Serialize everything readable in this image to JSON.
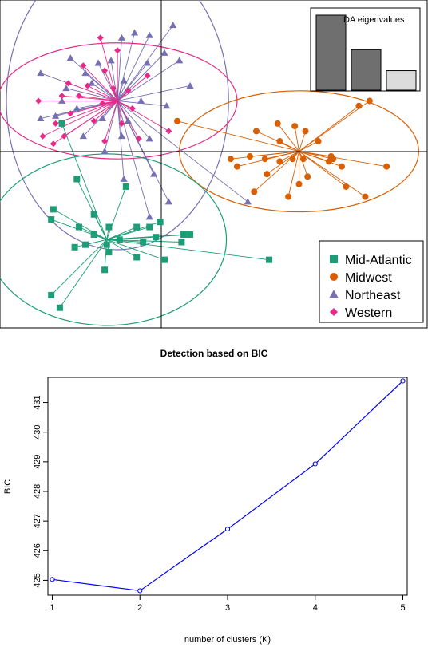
{
  "chart_data": [
    {
      "type": "scatter",
      "title": "",
      "xlabel": "",
      "ylabel": "",
      "xlim": [
        -10,
        10
      ],
      "ylim": [
        -7,
        6
      ],
      "axes_crosshair": true,
      "legend": {
        "placement": "bottom-right",
        "entries": [
          {
            "label": "Mid-Atlantic",
            "color": "#1b9e77",
            "marker": "square"
          },
          {
            "label": "Midwest",
            "color": "#d95f02",
            "marker": "circle"
          },
          {
            "label": "Northeast",
            "color": "#7570b3",
            "marker": "triangle"
          },
          {
            "label": "Western",
            "color": "#e7298a",
            "marker": "diamond"
          }
        ]
      },
      "inset": {
        "title": "DA eigenvalues",
        "values": [
          1.0,
          0.54,
          0.26
        ],
        "colors": [
          "#6f6f6f",
          "#6f6f6f",
          "#dcdcdc"
        ]
      },
      "series": [
        {
          "name": "Northeast",
          "color": "#7570b3",
          "marker": "triangle",
          "center": [
            -4.5,
            2.0
          ],
          "ellipse": {
            "rx": 5.2,
            "ry": 5.9
          },
          "points": [
            [
              -1.9,
              5.0
            ],
            [
              -3.7,
              4.7
            ],
            [
              -3.0,
              4.6
            ],
            [
              -4.3,
              4.5
            ],
            [
              -2.3,
              3.9
            ],
            [
              -6.7,
              3.7
            ],
            [
              -4.8,
              3.6
            ],
            [
              -5.4,
              3.5
            ],
            [
              -3.1,
              3.5
            ],
            [
              -1.6,
              3.6
            ],
            [
              -6.0,
              3.1
            ],
            [
              -8.1,
              3.1
            ],
            [
              -5.7,
              2.7
            ],
            [
              -4.2,
              2.8
            ],
            [
              -1.1,
              2.6
            ],
            [
              -6.9,
              2.5
            ],
            [
              -7.1,
              2.0
            ],
            [
              -6.4,
              1.7
            ],
            [
              -3.4,
              2.0
            ],
            [
              -2.2,
              1.8
            ],
            [
              -7.4,
              1.4
            ],
            [
              -5.2,
              1.3
            ],
            [
              -8.1,
              1.3
            ],
            [
              -4.0,
              1.2
            ],
            [
              -6.1,
              0.6
            ],
            [
              -3.0,
              0.5
            ],
            [
              -4.3,
              0.6
            ],
            [
              -5.1,
              0.0
            ],
            [
              -2.8,
              -0.9
            ],
            [
              -4.2,
              -1.1
            ],
            [
              -2.1,
              -2.0
            ],
            [
              -3.0,
              -2.6
            ],
            [
              1.6,
              -2.0
            ]
          ]
        },
        {
          "name": "Western",
          "color": "#e7298a",
          "marker": "diamond",
          "center": [
            -4.5,
            2.0
          ],
          "ellipse": {
            "rx": 5.6,
            "ry": 2.3
          },
          "points": [
            [
              -5.3,
              4.5
            ],
            [
              -4.5,
              4.0
            ],
            [
              -6.1,
              3.4
            ],
            [
              -5.1,
              3.2
            ],
            [
              -3.1,
              3.0
            ],
            [
              -6.8,
              2.7
            ],
            [
              -5.9,
              2.6
            ],
            [
              -4.7,
              2.5
            ],
            [
              -4.0,
              2.4
            ],
            [
              -7.1,
              2.2
            ],
            [
              -6.3,
              2.2
            ],
            [
              -8.2,
              2.0
            ],
            [
              -5.2,
              1.9
            ],
            [
              -3.8,
              1.7
            ],
            [
              -6.7,
              1.5
            ],
            [
              -5.6,
              1.2
            ],
            [
              -7.4,
              1.1
            ],
            [
              -4.3,
              1.1
            ],
            [
              -2.1,
              0.8
            ],
            [
              -7.0,
              0.6
            ],
            [
              -8.0,
              0.6
            ],
            [
              -3.5,
              0.5
            ],
            [
              -5.1,
              0.4
            ],
            [
              -7.5,
              0.3
            ]
          ]
        },
        {
          "name": "Midwest",
          "color": "#d95f02",
          "marker": "circle",
          "center": [
            4.0,
            0.0
          ],
          "ellipse": {
            "rx": 5.6,
            "ry": 2.4
          },
          "points": [
            [
              7.3,
              2.0
            ],
            [
              6.8,
              1.8
            ],
            [
              -1.7,
              1.2
            ],
            [
              3.0,
              1.1
            ],
            [
              3.8,
              1.0
            ],
            [
              2.0,
              0.8
            ],
            [
              4.3,
              0.8
            ],
            [
              3.1,
              0.4
            ],
            [
              4.9,
              0.4
            ],
            [
              5.5,
              -0.2
            ],
            [
              5.6,
              -0.3
            ],
            [
              5.4,
              -0.4
            ],
            [
              6.0,
              -0.6
            ],
            [
              1.7,
              -0.2
            ],
            [
              2.4,
              -0.3
            ],
            [
              3.1,
              -0.4
            ],
            [
              3.7,
              -0.3
            ],
            [
              4.2,
              -0.3
            ],
            [
              2.5,
              -0.9
            ],
            [
              4.4,
              -1.0
            ],
            [
              8.1,
              -0.6
            ],
            [
              0.8,
              -0.3
            ],
            [
              1.1,
              -0.6
            ],
            [
              4.0,
              -1.3
            ],
            [
              6.2,
              -1.4
            ],
            [
              3.5,
              -1.8
            ],
            [
              1.9,
              -1.6
            ],
            [
              7.1,
              -1.8
            ]
          ]
        },
        {
          "name": "Mid-Atlantic",
          "color": "#1b9e77",
          "marker": "square",
          "center": [
            -5.0,
            -3.5
          ],
          "ellipse": {
            "rx": 5.6,
            "ry": 3.4
          },
          "points": [
            [
              -7.1,
              1.1
            ],
            [
              -6.4,
              -1.1
            ],
            [
              -4.1,
              -1.4
            ],
            [
              -7.5,
              -2.3
            ],
            [
              -7.6,
              -2.7
            ],
            [
              -5.6,
              -2.5
            ],
            [
              -6.3,
              -3.0
            ],
            [
              -4.9,
              -3.0
            ],
            [
              -2.5,
              -2.8
            ],
            [
              -3.0,
              -3.0
            ],
            [
              -3.6,
              -3.0
            ],
            [
              -5.6,
              -3.3
            ],
            [
              -2.7,
              -3.4
            ],
            [
              -3.3,
              -3.6
            ],
            [
              -4.4,
              -3.5
            ],
            [
              -5.0,
              -3.7
            ],
            [
              -6.0,
              -3.7
            ],
            [
              -6.5,
              -3.8
            ],
            [
              -1.4,
              -3.3
            ],
            [
              -1.1,
              -3.3
            ],
            [
              -1.5,
              -3.6
            ],
            [
              -4.9,
              -4.0
            ],
            [
              -3.6,
              -4.2
            ],
            [
              -2.3,
              -4.3
            ],
            [
              -5.1,
              -4.7
            ],
            [
              2.6,
              -4.3
            ],
            [
              -7.6,
              -5.7
            ],
            [
              -7.2,
              -6.2
            ]
          ]
        }
      ]
    },
    {
      "type": "line",
      "title": "Detection based on BIC",
      "xlabel": "number of clusters (K)",
      "ylabel": "BIC",
      "x": [
        1,
        2,
        3,
        4,
        5
      ],
      "xlim": [
        0.95,
        5.05
      ],
      "ylim": [
        424.5,
        431.85
      ],
      "xticks": [
        "1",
        "2",
        "3",
        "4",
        "5"
      ],
      "yticks": [
        "425",
        "426",
        "427",
        "428",
        "429",
        "430",
        "431"
      ],
      "series": [
        {
          "values": [
            425.03,
            424.65,
            426.73,
            428.93,
            431.73
          ],
          "color": "#0000ff",
          "marker": "open-circle"
        }
      ]
    }
  ]
}
